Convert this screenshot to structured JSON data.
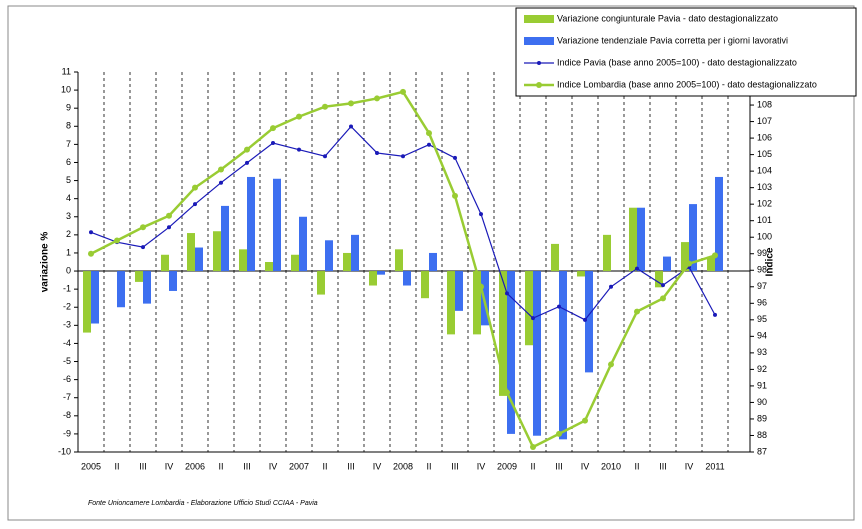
{
  "chart_data": {
    "type": "bar_line",
    "footnote": "Fonte Unioncamere Lombardia - Elaborazione Ufficio Studi CCIAA - Pavia",
    "ylabel": "variazione %",
    "y2label": "Indice",
    "categories": [
      "2005",
      "II",
      "III",
      "IV",
      "2006",
      "II",
      "III",
      "IV",
      "2007",
      "II",
      "III",
      "IV",
      "2008",
      "II",
      "III",
      "IV",
      "2009",
      "II",
      "III",
      "IV",
      "2010",
      "II",
      "III",
      "IV",
      "2011"
    ],
    "ylim": [
      -10,
      11
    ],
    "yticks": [
      -10,
      -9,
      -8,
      -7,
      -6,
      -5,
      -4,
      -3,
      -2,
      -1,
      0,
      1,
      2,
      3,
      4,
      5,
      6,
      7,
      8,
      9,
      10,
      11
    ],
    "y2lim": [
      87,
      110
    ],
    "y2ticks": [
      87,
      88,
      89,
      90,
      91,
      92,
      93,
      94,
      95,
      96,
      97,
      98,
      99,
      100,
      101,
      102,
      103,
      104,
      105,
      106,
      107,
      108
    ],
    "series": [
      {
        "name": "Variazione congiunturale Pavia - dato destagionalizzato",
        "kind": "bar",
        "color": "#99cc33",
        "values": [
          -3.4,
          0,
          -0.6,
          0.9,
          2.1,
          2.2,
          1.2,
          0.5,
          0.9,
          -1.3,
          1.0,
          -0.8,
          1.2,
          -1.5,
          -3.5,
          -3.5,
          -6.9,
          -4.1,
          1.5,
          -0.3,
          2.0,
          3.5,
          -0.9,
          1.6,
          0.8
        ]
      },
      {
        "name": "Variazione tendenziale Pavia corretta per i giorni lavorativi",
        "kind": "bar",
        "color": "#3d6ff0",
        "values": [
          -2.9,
          -2.0,
          -1.8,
          -1.1,
          1.3,
          3.6,
          5.2,
          5.1,
          3.0,
          1.7,
          2.0,
          -0.2,
          -0.8,
          1.0,
          -2.2,
          -3.0,
          -9.0,
          -9.1,
          -9.3,
          -5.6,
          0,
          3.5,
          0.8,
          3.7,
          5.2
        ]
      },
      {
        "name": "Indice Pavia (base anno 2005=100) - dato destagionalizzato",
        "kind": "line",
        "axis": "y2",
        "color": "#1a1ab8",
        "values": [
          100.3,
          99.7,
          99.4,
          100.6,
          102.0,
          103.3,
          104.5,
          105.7,
          105.3,
          104.9,
          106.7,
          105.1,
          104.9,
          105.6,
          104.8,
          101.4,
          96.6,
          95.1,
          95.8,
          95.0,
          97.0,
          98.1,
          97.1,
          98.2,
          95.3
        ]
      },
      {
        "name": "Indice Lombardia (base anno 2005=100) - dato destagionalizzato",
        "kind": "line",
        "axis": "y2",
        "color": "#99cc33",
        "values": [
          99.0,
          99.8,
          100.6,
          101.3,
          103.0,
          104.1,
          105.3,
          106.6,
          107.3,
          107.9,
          108.1,
          108.4,
          108.8,
          106.3,
          102.5,
          97.0,
          90.6,
          87.3,
          88.1,
          88.9,
          92.3,
          95.5,
          96.3,
          98.4,
          98.9
        ]
      }
    ]
  }
}
